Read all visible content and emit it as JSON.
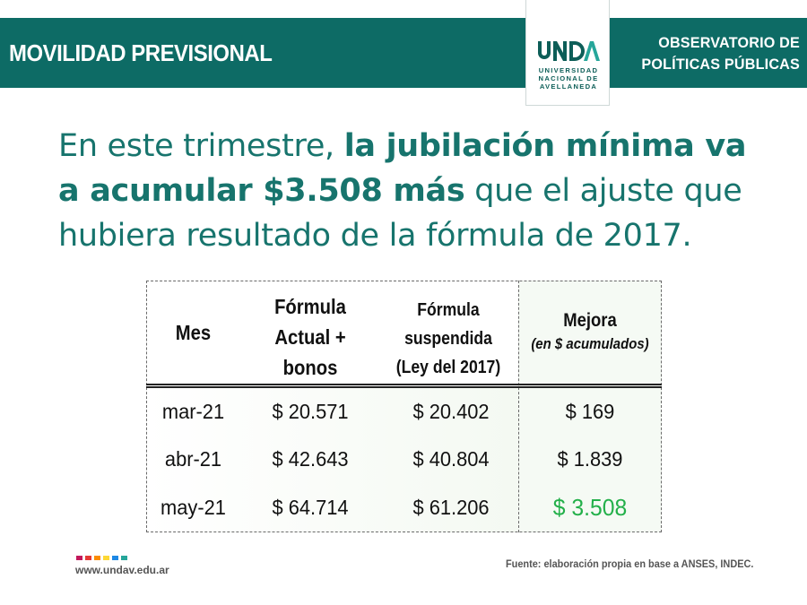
{
  "header": {
    "section_title": "MOVILIDAD PREVISIONAL",
    "observatory_line1": "OBSERVATORIO DE",
    "observatory_line2": "POLÍTICAS PÚBLICAS",
    "logo_name": "UNDAV",
    "logo_line1": "UNIVERSIDAD",
    "logo_line2": "NACIONAL DE",
    "logo_line3": "AVELLANEDA"
  },
  "headline": {
    "part1": "En este trimestre, ",
    "bold": "la jubilación mínima va a acumular $3.508 más",
    "part2": " que el ajuste que hubiera resultado de la fórmula de 2017."
  },
  "table": {
    "headers": {
      "mes": "Mes",
      "actual_line1": "Fórmula",
      "actual_line2": "Actual +",
      "actual_line3": "bonos",
      "susp_line1": "Fórmula",
      "susp_line2": "suspendida",
      "susp_line3": "(Ley del 2017)",
      "mejora": "Mejora",
      "mejora_sub": "(en $ acumulados)"
    },
    "rows": [
      {
        "mes": "mar-21",
        "actual": "$ 20.571",
        "suspendida": "$ 20.402",
        "mejora": "$ 169"
      },
      {
        "mes": "abr-21",
        "actual": "$ 42.643",
        "suspendida": "$ 40.804",
        "mejora": "$ 1.839"
      },
      {
        "mes": "may-21",
        "actual": "$ 64.714",
        "suspendida": "$ 61.206",
        "mejora": "$ 3.508"
      }
    ]
  },
  "footer": {
    "url": "www.undav.edu.ar",
    "source": "Fuente: elaboración propia en base a ANSES, INDEC.",
    "dot_colors": [
      "#c2185b",
      "#e53935",
      "#fb8c00",
      "#fdd835",
      "#1e88e5",
      "#26a69a"
    ]
  },
  "colors": {
    "brand_teal": "#0d6b65",
    "headline_teal": "#17746d",
    "highlight_green": "#23b04a"
  }
}
